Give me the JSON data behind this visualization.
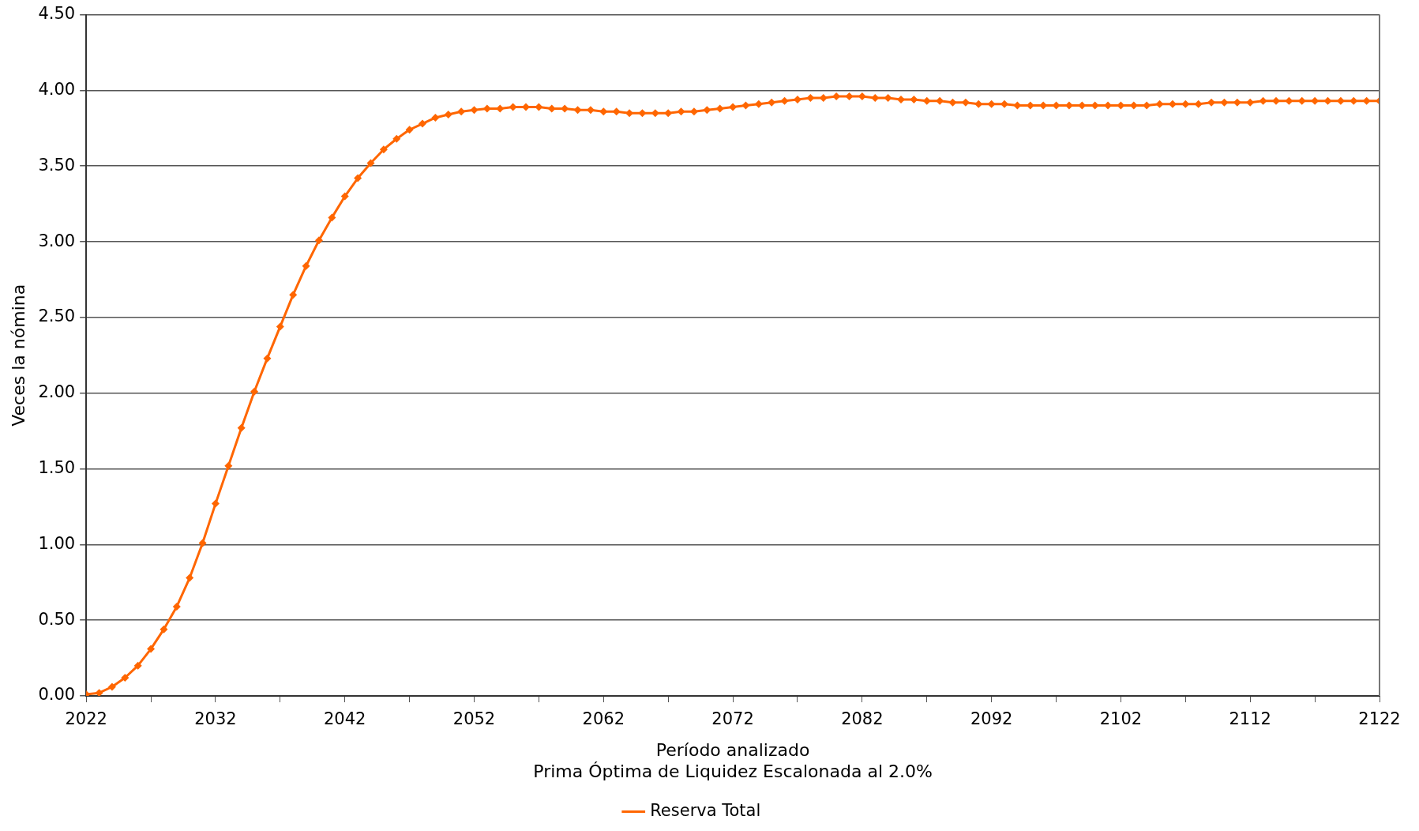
{
  "chart_data": {
    "type": "line",
    "xlabel": "Período analizado",
    "ylabel": "Veces la nómina",
    "annotations": [
      "Prima Óptima de Liquidez Escalonada al 2.0%"
    ],
    "x": [
      2022,
      2023,
      2024,
      2025,
      2026,
      2027,
      2028,
      2029,
      2030,
      2031,
      2032,
      2033,
      2034,
      2035,
      2036,
      2037,
      2038,
      2039,
      2040,
      2041,
      2042,
      2043,
      2044,
      2045,
      2046,
      2047,
      2048,
      2049,
      2050,
      2051,
      2052,
      2053,
      2054,
      2055,
      2056,
      2057,
      2058,
      2059,
      2060,
      2061,
      2062,
      2063,
      2064,
      2065,
      2066,
      2067,
      2068,
      2069,
      2070,
      2071,
      2072,
      2073,
      2074,
      2075,
      2076,
      2077,
      2078,
      2079,
      2080,
      2081,
      2082,
      2083,
      2084,
      2085,
      2086,
      2087,
      2088,
      2089,
      2090,
      2091,
      2092,
      2093,
      2094,
      2095,
      2096,
      2097,
      2098,
      2099,
      2100,
      2101,
      2102,
      2103,
      2104,
      2105,
      2106,
      2107,
      2108,
      2109,
      2110,
      2111,
      2112,
      2113,
      2114,
      2115,
      2116,
      2117,
      2118,
      2119,
      2120,
      2121,
      2122
    ],
    "series": [
      {
        "name": "Reserva Total",
        "color": "#ff6600",
        "values": [
          0.01,
          0.02,
          0.06,
          0.12,
          0.2,
          0.31,
          0.44,
          0.59,
          0.78,
          1.01,
          1.27,
          1.52,
          1.77,
          2.01,
          2.23,
          2.44,
          2.65,
          2.84,
          3.01,
          3.16,
          3.3,
          3.42,
          3.52,
          3.61,
          3.68,
          3.74,
          3.78,
          3.82,
          3.84,
          3.86,
          3.87,
          3.88,
          3.88,
          3.89,
          3.89,
          3.89,
          3.88,
          3.88,
          3.87,
          3.87,
          3.86,
          3.86,
          3.85,
          3.85,
          3.85,
          3.85,
          3.86,
          3.86,
          3.87,
          3.88,
          3.89,
          3.9,
          3.91,
          3.92,
          3.93,
          3.94,
          3.95,
          3.95,
          3.96,
          3.96,
          3.96,
          3.95,
          3.95,
          3.94,
          3.94,
          3.93,
          3.93,
          3.92,
          3.92,
          3.91,
          3.91,
          3.91,
          3.9,
          3.9,
          3.9,
          3.9,
          3.9,
          3.9,
          3.9,
          3.9,
          3.9,
          3.9,
          3.9,
          3.91,
          3.91,
          3.91,
          3.91,
          3.92,
          3.92,
          3.92,
          3.92,
          3.93,
          3.93,
          3.93,
          3.93,
          3.93,
          3.93,
          3.93,
          3.93,
          3.93,
          3.93
        ]
      }
    ],
    "xlim": [
      2022,
      2122
    ],
    "xticks": [
      2022,
      {
        "value": 2027,
        "label": null
      },
      2032,
      {
        "value": 2037,
        "label": null
      },
      2042,
      {
        "value": 2047,
        "label": null
      },
      2052,
      {
        "value": 2057,
        "label": null
      },
      2062,
      {
        "value": 2067,
        "label": null
      },
      2072,
      {
        "value": 2077,
        "label": null
      },
      2082,
      {
        "value": 2087,
        "label": null
      },
      2092,
      {
        "value": 2097,
        "label": null
      },
      2102,
      {
        "value": 2107,
        "label": null
      },
      2112,
      {
        "value": 2117,
        "label": null
      },
      2122
    ],
    "ylim": [
      0,
      4.5
    ],
    "yticks": [
      {
        "value": 0,
        "label": "0.00"
      },
      {
        "value": 0.5,
        "label": "0.50"
      },
      {
        "value": 1,
        "label": "1.00"
      },
      {
        "value": 1.5,
        "label": "1.50"
      },
      {
        "value": 2,
        "label": "2.00"
      },
      {
        "value": 2.5,
        "label": "2.50"
      },
      {
        "value": 3,
        "label": "3.00"
      },
      {
        "value": 3.5,
        "label": "3.50"
      },
      {
        "value": 4,
        "label": "4.00"
      },
      {
        "value": 4.5,
        "label": "4.50"
      }
    ],
    "grid": "y",
    "legend": "bottom",
    "marker": "diamond",
    "line_style": "solid"
  }
}
